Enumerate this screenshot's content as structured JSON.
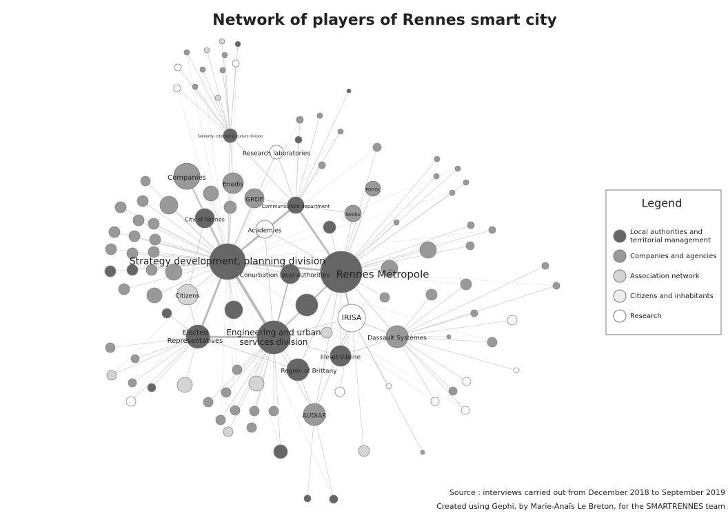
{
  "title": "Network of players of Rennes smart city",
  "nodes": [
    {
      "label": "Strategy development, planning division"
    },
    {
      "label": "Rennes Métropole"
    },
    {
      "label": "Engineering and urban services division"
    },
    {
      "label": "IRISA"
    },
    {
      "label": "Dassault Systèmes"
    },
    {
      "label": "Ille-et-Vilaine"
    },
    {
      "label": "Region of Brittany"
    },
    {
      "label": "AUDIAR"
    },
    {
      "label": "Elected Representatives"
    },
    {
      "label": "Citizens"
    },
    {
      "label": "Conurbation local authorities"
    },
    {
      "label": "Academies"
    },
    {
      "label": "Communication department"
    },
    {
      "label": "City of Rennes"
    },
    {
      "label": "GRDF"
    },
    {
      "label": "Enedis"
    },
    {
      "label": "Companies"
    },
    {
      "label": "Research laboratories"
    },
    {
      "label": "Solidarity, citizenship, culture division"
    },
    {
      "label": "Keolis"
    },
    {
      "label": "POOOL"
    }
  ],
  "legend": {
    "title": "Legend",
    "items": [
      "Local authorities and territorial management",
      "Companies and agencies",
      "Association network",
      "Citizens and inhabitants",
      "Research"
    ]
  },
  "source": [
    "Source : interviews carried out from December 2018 to September 2019",
    "Created using Gephi, by Marie-Anaïs Le Breton, for the SMARTRENNES team"
  ]
}
